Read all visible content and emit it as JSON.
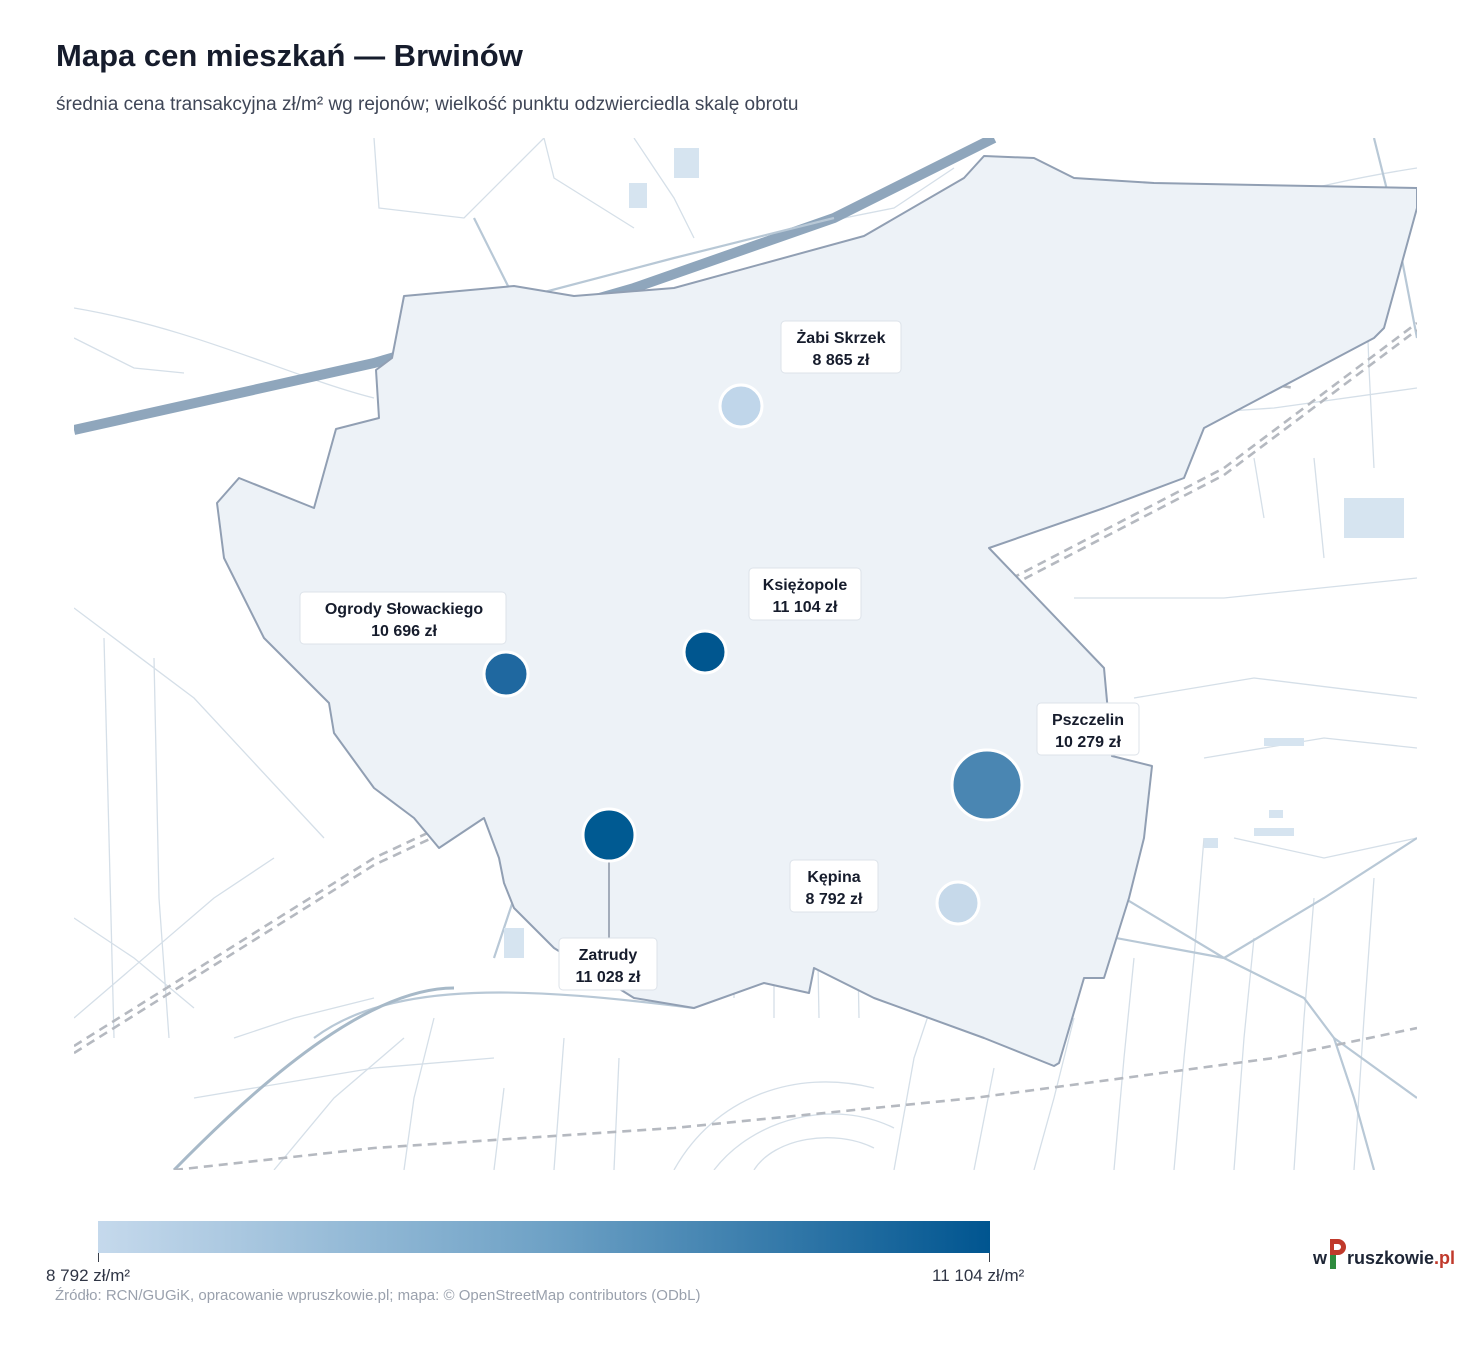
{
  "header": {
    "title": "Mapa cen mieszkań — Brwinów",
    "subtitle": "średnia cena transakcyjna zł/m² wg rejonów; wielkość punktu odzwierciedla skalę obrotu"
  },
  "districts": [
    {
      "name": "Żabi Skrzek",
      "price": "8 865 zł",
      "price_value": 8865,
      "color": "#c0d6ea"
    },
    {
      "name": "Księżopole",
      "price": "11 104 zł",
      "price_value": 11104,
      "color": "#00568f"
    },
    {
      "name": "Ogrody Słowackiego",
      "price": "10 696 zł",
      "price_value": 10696,
      "color": "#1f68a0"
    },
    {
      "name": "Pszczelin",
      "price": "10 279 zł",
      "price_value": 10279,
      "color": "#4a86b2"
    },
    {
      "name": "Kępina",
      "price": "8 792 zł",
      "price_value": 8792,
      "color": "#c6d9ea"
    },
    {
      "name": "Zatrudy",
      "price": "11 028 zł",
      "price_value": 11028,
      "color": "#005a92"
    }
  ],
  "legend": {
    "min_label": "8 792 zł/m²",
    "max_label": "11 104 zł/m²",
    "min_value": 8792,
    "max_value": 11104,
    "color_min": "#c5d9ec",
    "color_max": "#005590"
  },
  "footer": {
    "source": "Źródło: RCN/GUGiK, opracowanie wpruszkowie.pl; mapa: © OpenStreetMap contributors (ODbL)",
    "logo_prefix": "w",
    "logo_word": "ruszkowie",
    "logo_suffix": ".pl"
  }
}
